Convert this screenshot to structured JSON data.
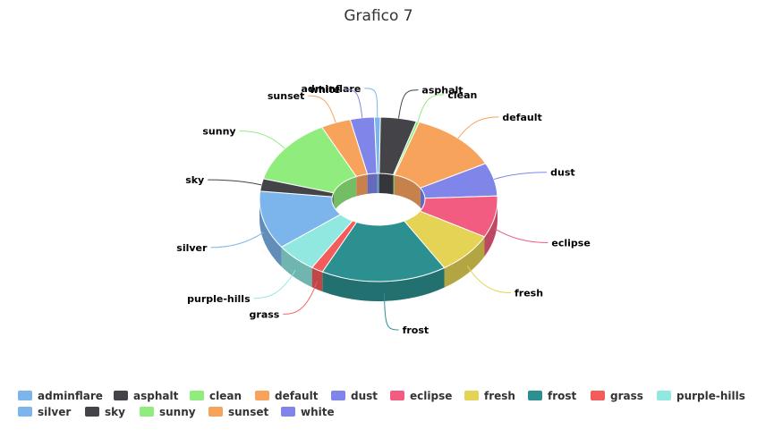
{
  "chart_data": {
    "type": "pie",
    "title": "Grafico 7",
    "donut": true,
    "three_d": true,
    "legend_position": "bottom",
    "categories": [
      "adminflare",
      "asphalt",
      "clean",
      "default",
      "dust",
      "eclipse",
      "fresh",
      "frost",
      "grass",
      "purple-hills",
      "silver",
      "sky",
      "sunny",
      "sunset",
      "white"
    ],
    "values": [
      1,
      6,
      0.5,
      15,
      8,
      10,
      10,
      21,
      2,
      7,
      14,
      3,
      16,
      5,
      4
    ],
    "colors": [
      "#7cb5ec",
      "#434348",
      "#90ed7d",
      "#f7a35c",
      "#8085e9",
      "#f15c80",
      "#e4d354",
      "#2b908f",
      "#f45b5b",
      "#91e8e1",
      "#7cb5ec",
      "#434348",
      "#90ed7d",
      "#f7a35c",
      "#8085e9"
    ]
  }
}
